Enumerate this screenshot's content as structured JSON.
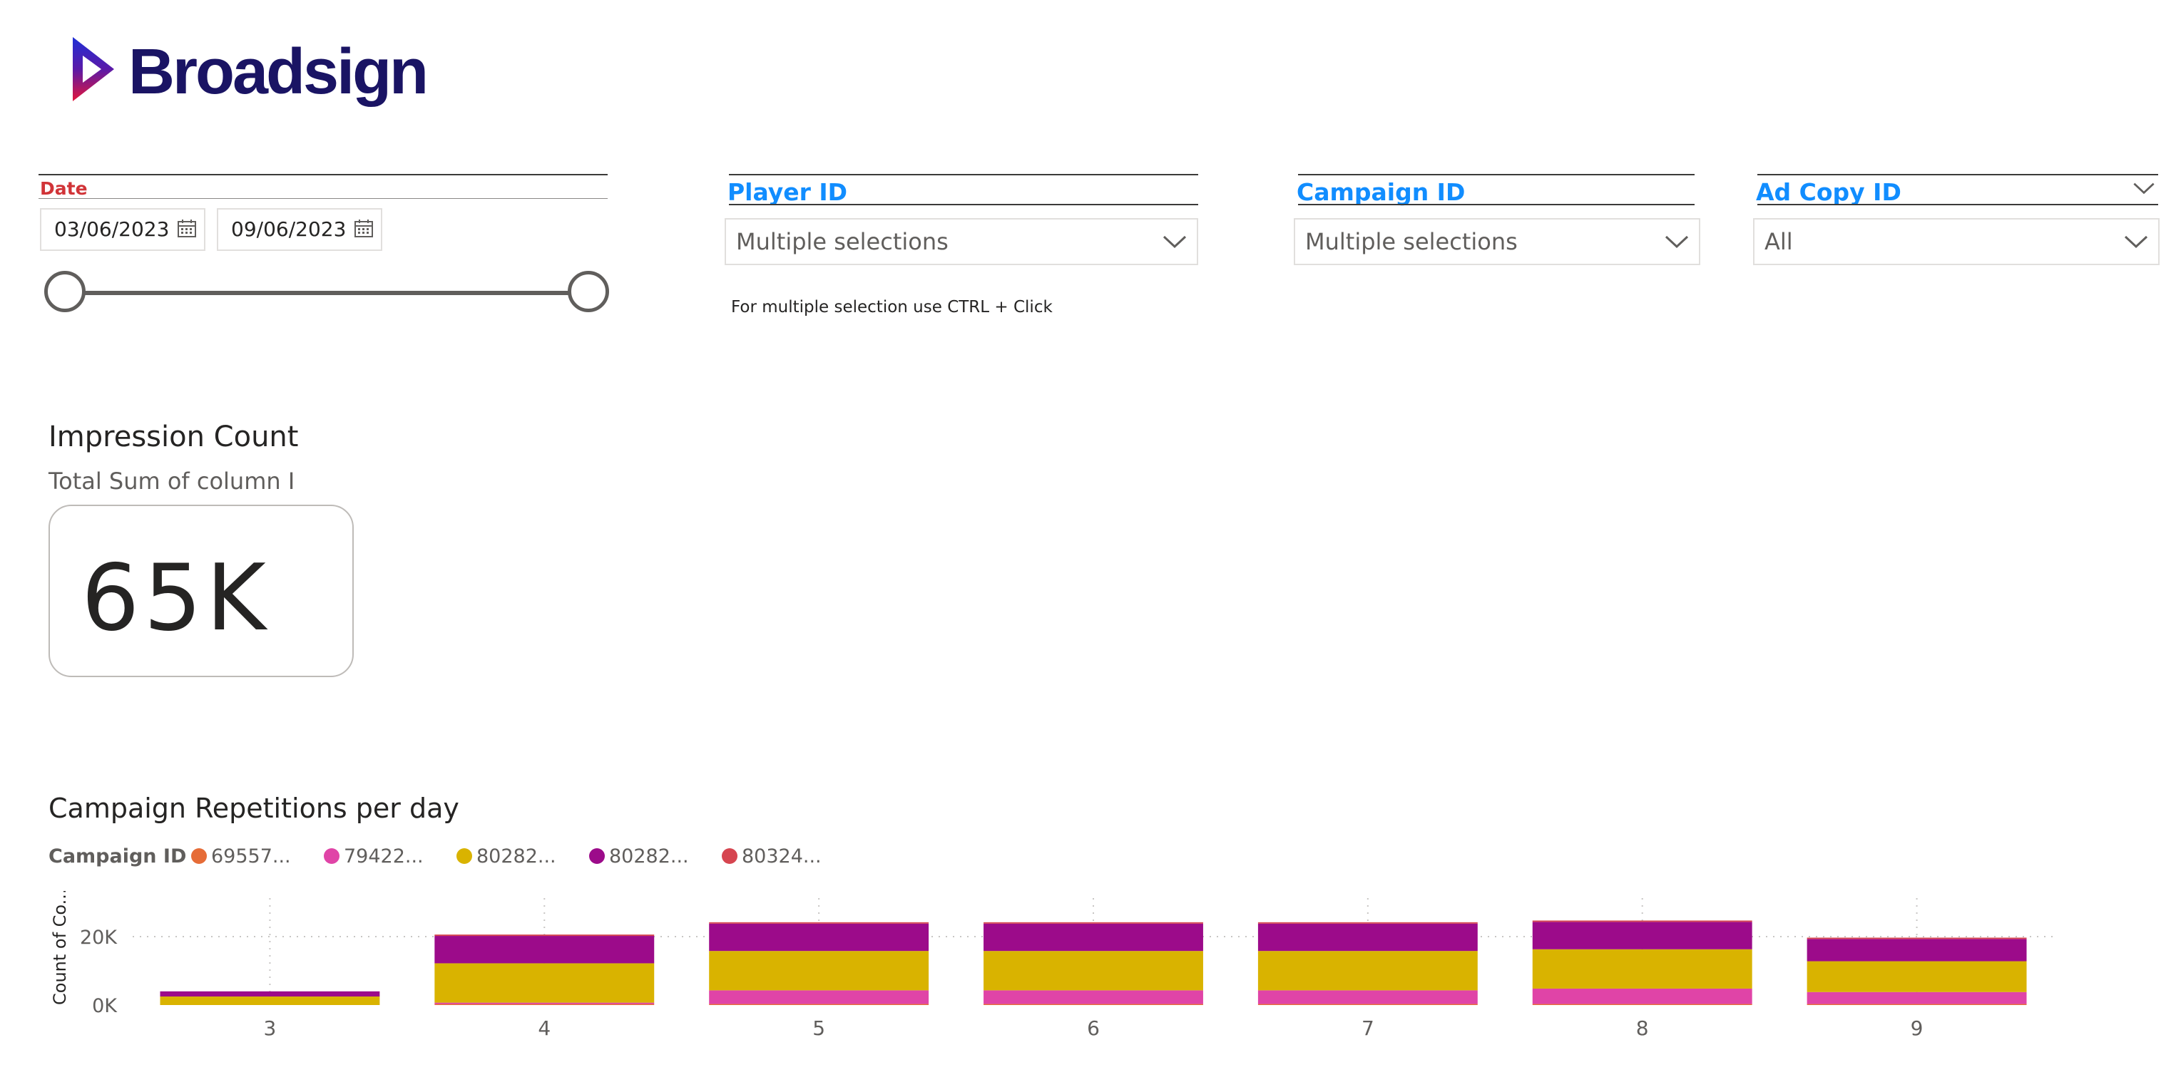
{
  "brand": {
    "name": "Broadsign"
  },
  "filters": {
    "date": {
      "title": "Date",
      "start": "03/06/2023",
      "end": "09/06/2023"
    },
    "player_id": {
      "title": "Player ID",
      "value": "Multiple selections",
      "hint": "For multiple selection use CTRL + Click"
    },
    "campaign_id": {
      "title": "Campaign ID",
      "value": "Multiple selections"
    },
    "ad_copy_id": {
      "title": "Ad Copy ID",
      "value": "All"
    }
  },
  "card": {
    "title": "Impression Count",
    "subtitle": "Total Sum of column I",
    "value": "65K"
  },
  "colors": {
    "accent": "#118dff",
    "date_title": "#d13438",
    "brand": "#1a1464"
  },
  "chart_data": {
    "type": "bar",
    "stacked": true,
    "title": "Campaign Repetitions per day",
    "legend_title": "Campaign ID",
    "legend_position": "top-left",
    "ylabel": "Count of Co...",
    "xlabel": "",
    "categories": [
      "3",
      "4",
      "5",
      "6",
      "7",
      "8",
      "9"
    ],
    "ylim": [
      0,
      25000
    ],
    "yticks": [
      "0K",
      "20K"
    ],
    "ytick_values": [
      0,
      20000
    ],
    "grid": true,
    "series": [
      {
        "name": "69557...",
        "color": "#e66c37",
        "values": [
          0,
          300,
          300,
          300,
          300,
          300,
          300
        ]
      },
      {
        "name": "79422...",
        "color": "#e044a7",
        "values": [
          0,
          400,
          4000,
          4000,
          4000,
          4500,
          3500
        ]
      },
      {
        "name": "80282...",
        "color": "#d9b300",
        "values": [
          2500,
          11500,
          11500,
          11500,
          11500,
          11500,
          9000
        ]
      },
      {
        "name": "80282...",
        "color": "#9c0b8a",
        "values": [
          1500,
          8000,
          8000,
          8000,
          8000,
          8000,
          6500
        ]
      },
      {
        "name": "80324...",
        "color": "#d64550",
        "values": [
          0,
          400,
          400,
          400,
          400,
          400,
          400
        ]
      }
    ]
  }
}
